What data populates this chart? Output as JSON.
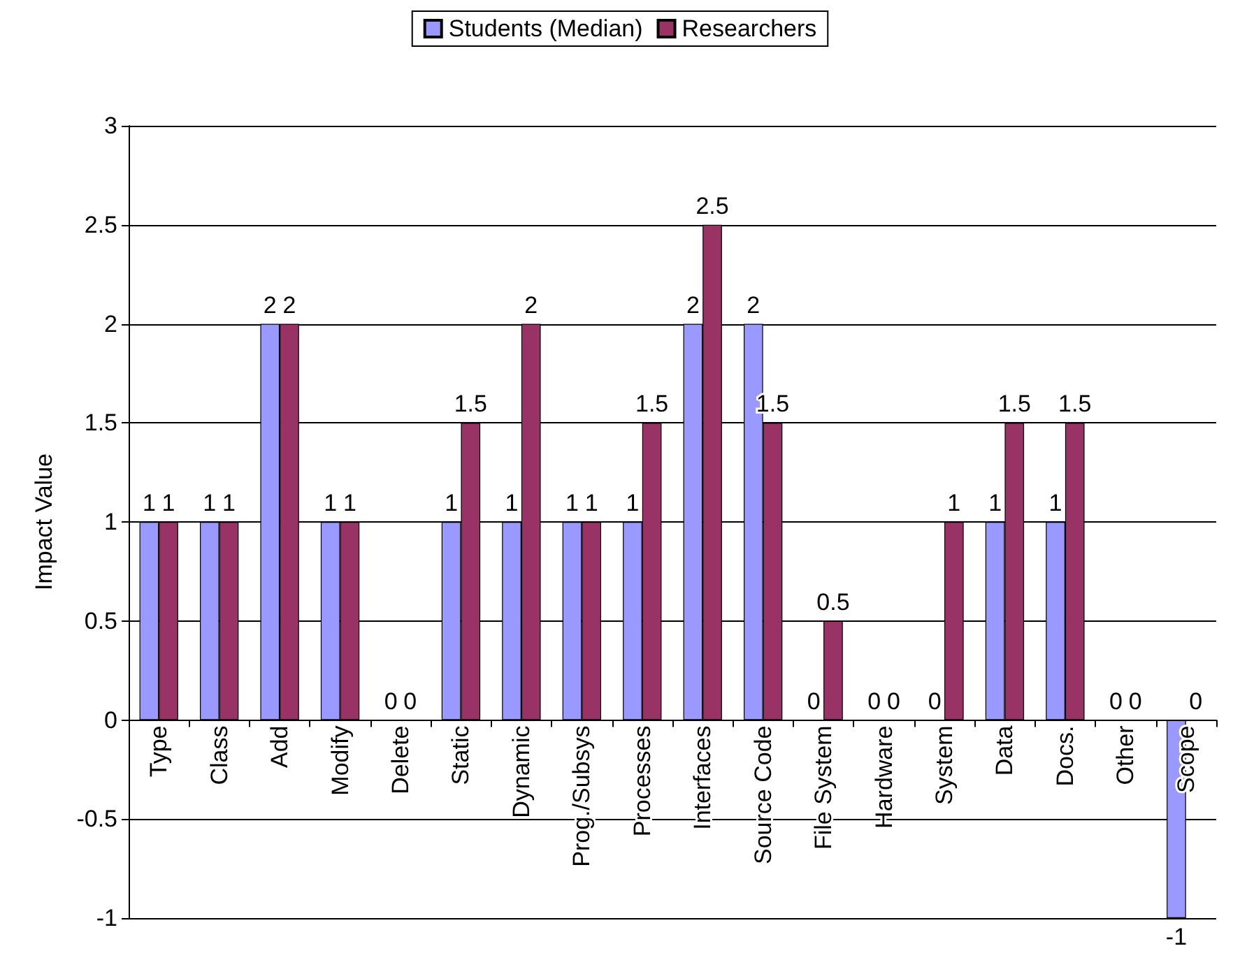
{
  "chart_data": {
    "type": "bar",
    "ylabel": "Impact Value",
    "categories": [
      "Type",
      "Class",
      "Add",
      "Modify",
      "Delete",
      "Static",
      "Dynamic",
      "Prog./Subsys",
      "Processes",
      "Interfaces",
      "Source Code",
      "File System",
      "Hardware",
      "System",
      "Data",
      "Docs.",
      "Other",
      "Scope"
    ],
    "series": [
      {
        "name": "Students (Median)",
        "color": "#9999ff",
        "values": [
          1,
          1,
          2,
          1,
          0,
          1,
          1,
          1,
          1,
          2,
          2,
          0,
          0,
          0,
          1,
          1,
          0,
          -1
        ]
      },
      {
        "name": "Researchers",
        "color": "#993366",
        "values": [
          1,
          1,
          2,
          1,
          0,
          1.5,
          2,
          1,
          1.5,
          2.5,
          1.5,
          0.5,
          0,
          1,
          1.5,
          1.5,
          0,
          0
        ]
      }
    ],
    "ylim": [
      -1,
      3
    ],
    "yticks": [
      -1,
      -0.5,
      0,
      0.5,
      1,
      1.5,
      2,
      2.5,
      3
    ],
    "grid": "y",
    "legend": "top",
    "data_labels": true
  }
}
